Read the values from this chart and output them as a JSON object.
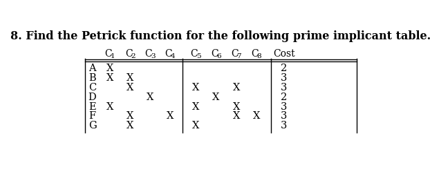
{
  "title": "8. Find the Petrick function for the following prime implicant table.",
  "title_fontsize": 11.5,
  "title_fontweight": "bold",
  "col_headers": [
    "C",
    "C",
    "C",
    "C",
    "C",
    "C",
    "C",
    "C",
    "Cost"
  ],
  "col_subs": [
    "1",
    "2",
    "3",
    "4",
    "5",
    "6",
    "7",
    "8",
    ""
  ],
  "row_labels": [
    "A",
    "B",
    "C",
    "D",
    "E",
    "F",
    "G"
  ],
  "table_data": [
    [
      "X",
      "",
      "",
      "",
      "",
      "",
      "",
      "",
      "2"
    ],
    [
      "X",
      "X",
      "",
      "",
      "",
      "",
      "",
      "",
      "3"
    ],
    [
      "",
      "X",
      "",
      "",
      "X",
      "",
      "X",
      "",
      "3"
    ],
    [
      "",
      "",
      "X",
      "",
      "",
      "X",
      "",
      "",
      "2"
    ],
    [
      "X",
      "",
      "",
      "",
      "X",
      "",
      "X",
      "",
      "3"
    ],
    [
      "",
      "X",
      "",
      "X",
      "",
      "",
      "X",
      "X",
      "3"
    ],
    [
      "",
      "X",
      "",
      "",
      "X",
      "",
      "",
      "",
      "3"
    ]
  ],
  "bg_color": "#ffffff",
  "text_color": "#000000",
  "font_family": "DejaVu Serif"
}
